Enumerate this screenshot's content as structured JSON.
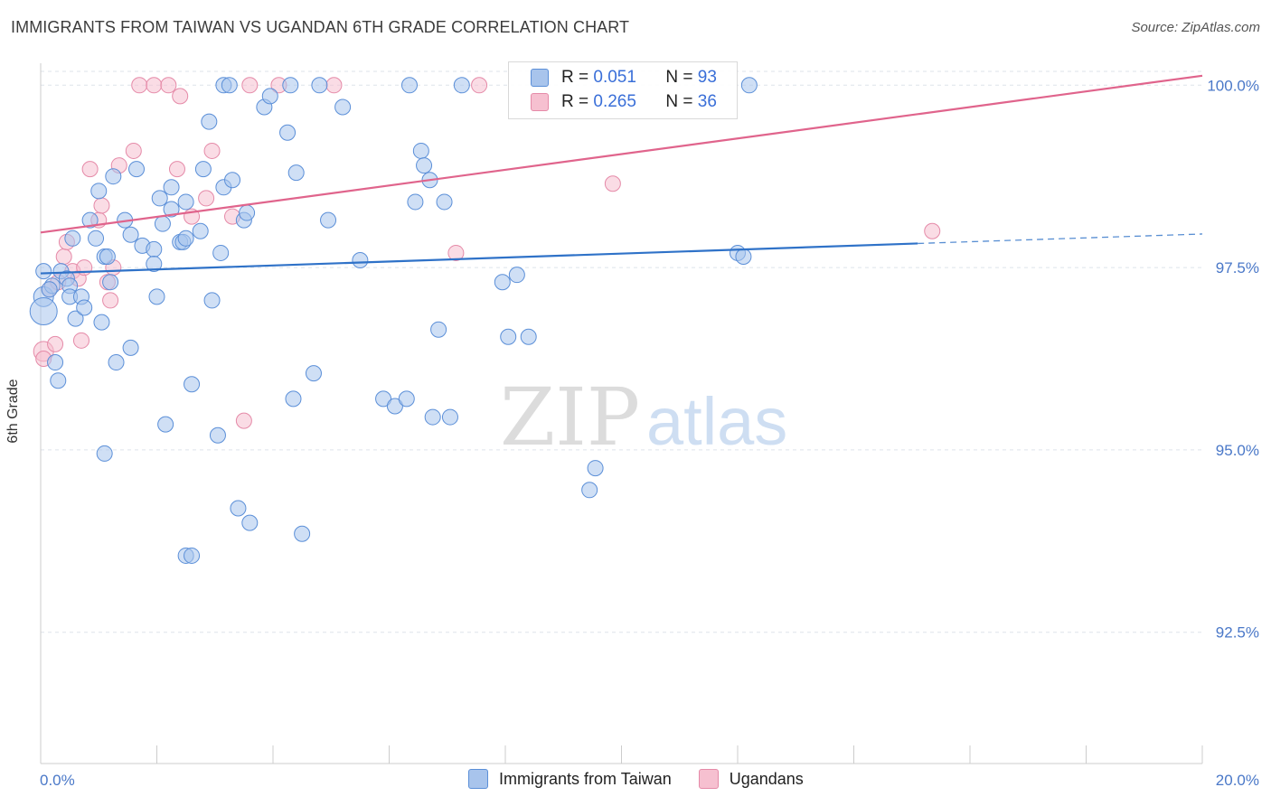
{
  "header": {
    "title": "IMMIGRANTS FROM TAIWAN VS UGANDAN 6TH GRADE CORRELATION CHART",
    "source": "Source: ZipAtlas.com"
  },
  "colors": {
    "blue_fill": "#a8c4ec",
    "blue_stroke": "#5b8fd8",
    "blue_line": "#2f72c8",
    "pink_fill": "#f6c0d0",
    "pink_stroke": "#e58aa8",
    "pink_line": "#e0648c",
    "tick_text": "#4a78c8",
    "grid": "#dde3ea"
  },
  "legend": {
    "r_label": "R =",
    "n_label": "N =",
    "series1": {
      "r": "0.051",
      "n": "93"
    },
    "series2": {
      "r": "0.265",
      "n": "36"
    }
  },
  "chart_data": {
    "type": "scatter",
    "title": "IMMIGRANTS FROM TAIWAN VS UGANDAN 6TH GRADE CORRELATION CHART",
    "xlabel": "",
    "ylabel": "6th Grade",
    "xlim": [
      0.0,
      20.0
    ],
    "ylim": [
      90.7,
      100.4
    ],
    "x_tick_labels": [
      "0.0%",
      "20.0%"
    ],
    "y_ticks": [
      92.5,
      95.0,
      97.5,
      100.0
    ],
    "y_tick_labels": [
      "92.5%",
      "95.0%",
      "97.5%",
      "100.0%"
    ],
    "grid": "horizontal dashed",
    "legend_placement": "bottom",
    "watermark": "ZIPatlas",
    "series": [
      {
        "name": "Immigrants from Taiwan",
        "color": "#a8c4ec",
        "r": 0.051,
        "n": 93,
        "trend": {
          "x": [
            0.0,
            15.1
          ],
          "y": [
            97.42,
            97.83
          ],
          "dashed_to": [
            20.0,
            97.96
          ]
        },
        "points": [
          [
            0.05,
            97.45
          ],
          [
            0.05,
            97.1
          ],
          [
            0.05,
            96.9
          ],
          [
            0.2,
            97.25
          ],
          [
            0.25,
            96.2
          ],
          [
            0.3,
            95.95
          ],
          [
            0.35,
            97.45
          ],
          [
            0.45,
            97.35
          ],
          [
            0.5,
            97.25
          ],
          [
            0.5,
            97.1
          ],
          [
            0.55,
            97.9
          ],
          [
            0.6,
            96.8
          ],
          [
            0.7,
            97.1
          ],
          [
            0.75,
            96.95
          ],
          [
            0.85,
            98.15
          ],
          [
            0.95,
            97.9
          ],
          [
            1.0,
            98.55
          ],
          [
            1.05,
            96.75
          ],
          [
            1.1,
            97.65
          ],
          [
            1.15,
            97.65
          ],
          [
            1.2,
            97.3
          ],
          [
            1.25,
            98.75
          ],
          [
            1.3,
            96.2
          ],
          [
            1.45,
            98.15
          ],
          [
            1.55,
            97.95
          ],
          [
            1.65,
            98.85
          ],
          [
            1.75,
            97.8
          ],
          [
            1.95,
            97.75
          ],
          [
            1.95,
            97.55
          ],
          [
            2.0,
            97.1
          ],
          [
            2.05,
            98.45
          ],
          [
            2.1,
            98.1
          ],
          [
            2.25,
            98.3
          ],
          [
            2.25,
            98.6
          ],
          [
            2.4,
            97.85
          ],
          [
            2.45,
            97.85
          ],
          [
            2.5,
            97.9
          ],
          [
            2.5,
            98.4
          ],
          [
            2.6,
            95.9
          ],
          [
            2.75,
            98.0
          ],
          [
            2.8,
            98.85
          ],
          [
            2.9,
            99.5
          ],
          [
            2.95,
            97.05
          ],
          [
            3.05,
            95.2
          ],
          [
            3.1,
            97.7
          ],
          [
            3.15,
            98.6
          ],
          [
            3.3,
            98.7
          ],
          [
            3.4,
            94.2
          ],
          [
            3.5,
            98.15
          ],
          [
            3.55,
            98.25
          ],
          [
            3.6,
            94.0
          ],
          [
            3.85,
            99.7
          ],
          [
            3.95,
            99.85
          ],
          [
            4.25,
            99.35
          ],
          [
            4.3,
            100.0
          ],
          [
            4.35,
            95.7
          ],
          [
            4.4,
            98.8
          ],
          [
            4.5,
            93.85
          ],
          [
            4.7,
            96.05
          ],
          [
            4.8,
            100.0
          ],
          [
            4.95,
            98.15
          ],
          [
            5.2,
            99.7
          ],
          [
            5.5,
            97.6
          ],
          [
            5.9,
            95.7
          ],
          [
            6.1,
            95.6
          ],
          [
            6.3,
            95.7
          ],
          [
            6.35,
            100.0
          ],
          [
            6.45,
            98.4
          ],
          [
            6.55,
            99.1
          ],
          [
            6.6,
            98.9
          ],
          [
            6.7,
            98.7
          ],
          [
            6.75,
            95.45
          ],
          [
            6.85,
            96.65
          ],
          [
            6.95,
            98.4
          ],
          [
            7.05,
            95.45
          ],
          [
            7.25,
            100.0
          ],
          [
            7.95,
            97.3
          ],
          [
            8.05,
            96.55
          ],
          [
            8.2,
            97.4
          ],
          [
            8.4,
            96.55
          ],
          [
            9.45,
            94.45
          ],
          [
            9.55,
            94.75
          ],
          [
            12.0,
            97.7
          ],
          [
            12.1,
            97.65
          ],
          [
            12.2,
            100.0
          ],
          [
            1.1,
            94.95
          ],
          [
            2.15,
            95.35
          ],
          [
            3.15,
            100.0
          ],
          [
            1.55,
            96.4
          ],
          [
            2.5,
            93.55
          ],
          [
            2.6,
            93.55
          ],
          [
            3.25,
            100.0
          ],
          [
            0.15,
            97.2
          ]
        ]
      },
      {
        "name": "Ugandans",
        "color": "#f6c0d0",
        "r": 0.265,
        "n": 36,
        "trend": {
          "x": [
            0.0,
            20.0
          ],
          "y": [
            97.98,
            100.13
          ]
        },
        "points": [
          [
            0.05,
            96.35
          ],
          [
            0.05,
            96.25
          ],
          [
            0.15,
            97.2
          ],
          [
            0.25,
            96.45
          ],
          [
            0.3,
            97.3
          ],
          [
            0.4,
            97.65
          ],
          [
            0.45,
            97.85
          ],
          [
            0.55,
            97.45
          ],
          [
            0.65,
            97.35
          ],
          [
            0.7,
            96.5
          ],
          [
            0.75,
            97.5
          ],
          [
            0.85,
            98.85
          ],
          [
            1.0,
            98.15
          ],
          [
            1.05,
            98.35
          ],
          [
            1.15,
            97.3
          ],
          [
            1.2,
            97.05
          ],
          [
            1.25,
            97.5
          ],
          [
            1.35,
            98.9
          ],
          [
            1.6,
            99.1
          ],
          [
            1.7,
            100.0
          ],
          [
            1.95,
            100.0
          ],
          [
            2.2,
            100.0
          ],
          [
            2.35,
            98.85
          ],
          [
            2.4,
            99.85
          ],
          [
            2.6,
            98.2
          ],
          [
            2.85,
            98.45
          ],
          [
            2.95,
            99.1
          ],
          [
            3.3,
            98.2
          ],
          [
            3.5,
            95.4
          ],
          [
            3.6,
            100.0
          ],
          [
            4.1,
            100.0
          ],
          [
            5.05,
            100.0
          ],
          [
            7.15,
            97.7
          ],
          [
            7.55,
            100.0
          ],
          [
            9.85,
            98.65
          ],
          [
            15.35,
            98.0
          ]
        ]
      }
    ]
  }
}
